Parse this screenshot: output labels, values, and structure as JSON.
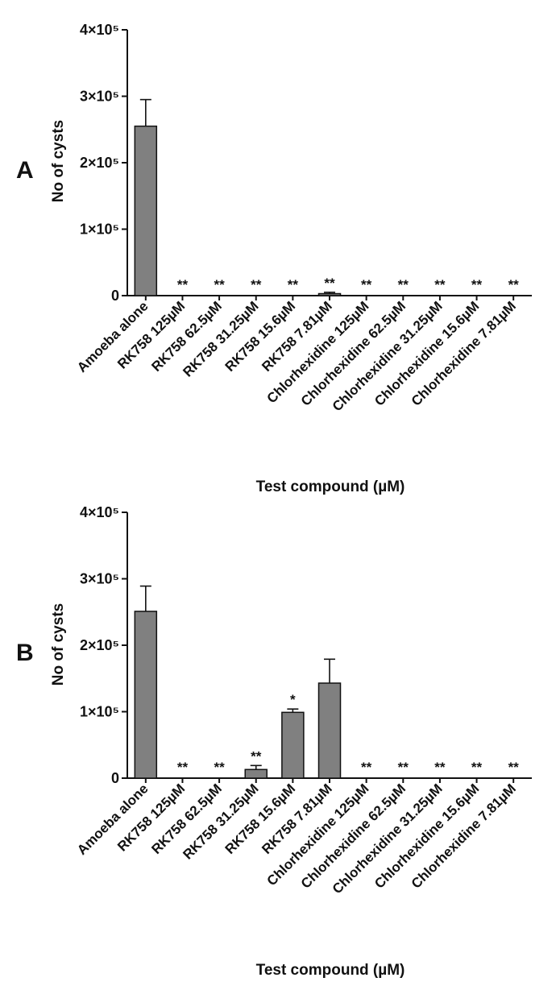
{
  "colors": {
    "bar": "#808080",
    "axis": "#111111"
  },
  "chart_data": [
    {
      "type": "bar",
      "panel": "A",
      "xlabel": "Test compound (µM)",
      "ylabel": "No of cysts",
      "ylim": [
        0,
        400000
      ],
      "yticks": [
        {
          "value": 0,
          "label": "0"
        },
        {
          "value": 100000,
          "label": "1×10⁵"
        },
        {
          "value": 200000,
          "label": "2×10⁵"
        },
        {
          "value": 300000,
          "label": "3×10⁵"
        },
        {
          "value": 400000,
          "label": "4×10⁵"
        }
      ],
      "categories": [
        "Amoeba alone",
        "RK758 125µM",
        "RK758 62.5µM",
        "RK758 31.25µM",
        "RK758 15.6µM",
        "RK758 7.81µM",
        "Chlorhexidine 125µM",
        "Chlorhexidine 62.5µM",
        "Chlorhexidine 31.25µM",
        "Chlorhexidine 15.6µM",
        "Chlorhexidine 7.81µM"
      ],
      "values": [
        255000,
        0,
        0,
        0,
        0,
        3000,
        0,
        0,
        0,
        0,
        0
      ],
      "errors": [
        40000,
        0,
        0,
        0,
        0,
        2000,
        0,
        0,
        0,
        0,
        0
      ],
      "significance": [
        "",
        "**",
        "**",
        "**",
        "**",
        "**",
        "**",
        "**",
        "**",
        "**",
        "**"
      ],
      "grid": false,
      "legend": "none"
    },
    {
      "type": "bar",
      "panel": "B",
      "xlabel": "Test compound (µM)",
      "ylabel": "No of cysts",
      "ylim": [
        0,
        400000
      ],
      "yticks": [
        {
          "value": 0,
          "label": "0"
        },
        {
          "value": 100000,
          "label": "1×10⁵"
        },
        {
          "value": 200000,
          "label": "2×10⁵"
        },
        {
          "value": 300000,
          "label": "3×10⁵"
        },
        {
          "value": 400000,
          "label": "4×10⁵"
        }
      ],
      "categories": [
        "Amoeba alone",
        "RK758 125µM",
        "RK758 62.5µM",
        "RK758 31.25µM",
        "RK758 15.6µM",
        "RK758 7.81µM",
        "Chlorhexidine 125µM",
        "Chlorhexidine 62.5µM",
        "Chlorhexidine 31.25µM",
        "Chlorhexidine 15.6µM",
        "Chlorhexidine 7.81µM"
      ],
      "values": [
        251000,
        0,
        0,
        13000,
        99000,
        143000,
        0,
        0,
        0,
        0,
        0
      ],
      "errors": [
        38000,
        0,
        0,
        6000,
        5000,
        36000,
        0,
        0,
        0,
        0,
        0
      ],
      "significance": [
        "",
        "**",
        "**",
        "**",
        "*",
        "",
        "**",
        "**",
        "**",
        "**",
        "**"
      ],
      "grid": false,
      "legend": "none"
    }
  ]
}
